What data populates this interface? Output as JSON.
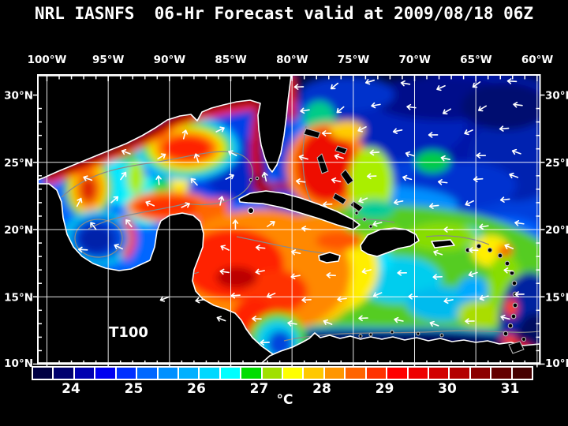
{
  "title": "NRL IASNFS  06-Hr Forecast valid at 2009/08/18 06Z",
  "map": {
    "field_label": "T100",
    "axes": {
      "lon": [
        "100°W",
        "95°W",
        "90°W",
        "85°W",
        "80°W",
        "75°W",
        "70°W",
        "65°W",
        "60°W"
      ],
      "lat": [
        "30°N",
        "25°N",
        "20°N",
        "15°N",
        "10°N"
      ]
    }
  },
  "colorbar": {
    "unit": "°C",
    "tick_labels": [
      "24",
      "25",
      "26",
      "27",
      "28",
      "29",
      "30",
      "31"
    ],
    "colors": [
      "#000042",
      "#00006e",
      "#0000b0",
      "#0000f0",
      "#0030ff",
      "#0068ff",
      "#0090ff",
      "#00b0ff",
      "#00d8ff",
      "#00ffff",
      "#00dd00",
      "#a0e000",
      "#ffff00",
      "#ffc800",
      "#ff9600",
      "#ff6400",
      "#ff3200",
      "#ff0000",
      "#ee0000",
      "#d20000",
      "#b40000",
      "#8c0000",
      "#640000",
      "#460000"
    ]
  },
  "theme": {
    "background": "#000000",
    "text": "#ffffff",
    "grid": "#ffffff",
    "land": "#000000",
    "coastline": "#ffffff"
  }
}
